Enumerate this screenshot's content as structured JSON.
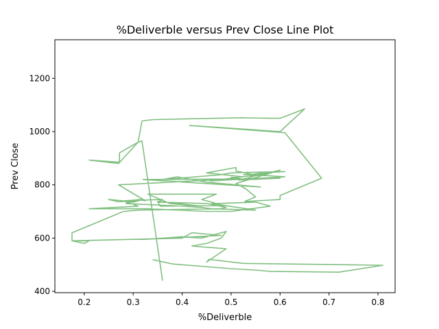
{
  "chart_data": {
    "type": "line",
    "title": "%Deliverble versus Prev Close Line Plot",
    "xlabel": "%Deliverble",
    "ylabel": "Prev Close",
    "xlim": [
      0.14,
      0.835
    ],
    "ylim": [
      395,
      1345
    ],
    "x_ticks": [
      0.2,
      0.3,
      0.4,
      0.5,
      0.6,
      0.7,
      0.8
    ],
    "x_tick_labels": [
      "0.2",
      "0.3",
      "0.4",
      "0.5",
      "0.6",
      "0.7",
      "0.8"
    ],
    "y_ticks": [
      400,
      600,
      800,
      1000,
      1200
    ],
    "y_tick_labels": [
      "400",
      "600",
      "800",
      "1000",
      "1200"
    ],
    "grid": false,
    "legend": false,
    "line_color": "#80bf80",
    "series": [
      {
        "x": [
          0.36,
          0.318,
          0.31,
          0.272,
          0.272,
          0.21,
          0.27,
          0.31,
          0.318,
          0.318,
          0.34,
          0.52,
          0.58,
          0.6,
          0.65,
          0.6,
          0.415,
          0.61,
          0.685,
          0.6,
          0.6,
          0.532,
          0.528,
          0.55,
          0.53,
          0.51,
          0.6,
          0.54,
          0.54,
          0.565,
          0.458,
          0.61,
          0.535,
          0.525,
          0.57,
          0.555,
          0.51,
          0.51,
          0.45,
          0.525,
          0.5,
          0.52,
          0.32,
          0.56,
          0.45,
          0.39,
          0.36,
          0.48,
          0.5,
          0.61,
          0.565,
          0.545,
          0.55,
          0.54,
          0.515,
          0.6,
          0.48,
          0.27,
          0.325,
          0.31,
          0.285,
          0.4,
          0.44,
          0.46,
          0.55,
          0.46,
          0.49,
          0.355,
          0.35,
          0.44,
          0.375,
          0.33,
          0.47,
          0.44,
          0.45,
          0.47,
          0.55,
          0.58,
          0.5,
          0.45,
          0.33,
          0.21,
          0.31,
          0.28,
          0.32,
          0.3,
          0.28,
          0.25,
          0.27,
          0.31,
          0.36,
          0.35,
          0.45,
          0.49,
          0.48,
          0.31,
          0.28,
          0.175,
          0.175,
          0.2,
          0.21,
          0.175,
          0.4,
          0.42,
          0.48,
          0.32,
          0.36,
          0.4,
          0.44,
          0.49,
          0.48,
          0.45,
          0.42,
          0.49,
          0.45,
          0.455,
          0.525,
          0.73,
          0.81,
          0.72,
          0.58,
          0.55,
          0.5,
          0.38,
          0.34
        ],
        "y": [
          440,
          965,
          960,
          920,
          885,
          893,
          880,
          960,
          1040,
          1040,
          1045,
          1052,
          1050,
          1050,
          1085,
          1000,
          1023,
          996,
          825,
          760,
          745,
          738,
          738,
          755,
          785,
          805,
          855,
          830,
          838,
          840,
          815,
          830,
          840,
          838,
          840,
          835,
          852,
          865,
          845,
          830,
          828,
          822,
          820,
          792,
          810,
          830,
          820,
          838,
          845,
          850,
          845,
          840,
          835,
          828,
          818,
          825,
          820,
          800,
          740,
          745,
          730,
          720,
          715,
          710,
          705,
          730,
          722,
          720,
          738,
          720,
          730,
          765,
          765,
          745,
          740,
          730,
          735,
          720,
          700,
          700,
          710,
          710,
          720,
          740,
          745,
          735,
          740,
          745,
          736,
          742,
          745,
          735,
          730,
          715,
          710,
          705,
          700,
          620,
          590,
          580,
          590,
          590,
          600,
          620,
          610,
          595,
          600,
          605,
          600,
          625,
          600,
          580,
          570,
          560,
          510,
          520,
          505,
          500,
          498,
          472,
          475,
          480,
          485,
          503,
          519
        ]
      }
    ]
  }
}
